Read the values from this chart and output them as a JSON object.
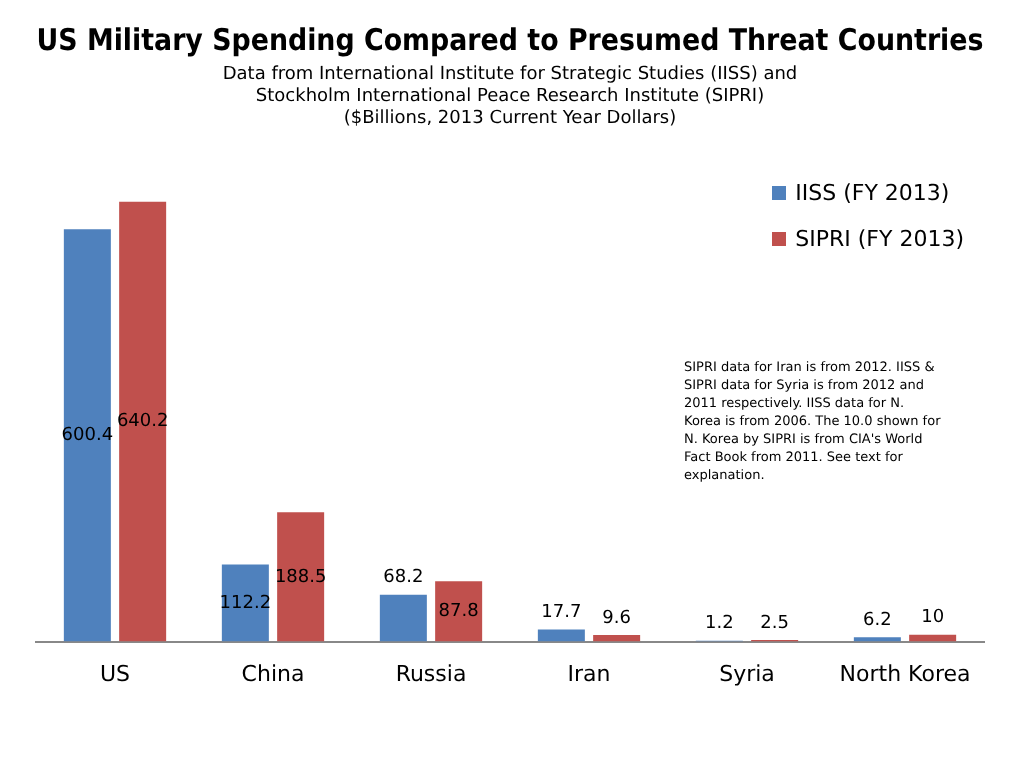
{
  "chart_data": {
    "type": "bar",
    "title": "US Military Spending Compared to Presumed Threat Countries",
    "subtitle": "Data from International Institute for Strategic Studies (IISS) and\nStockholm International Peace Research Institute (SIPRI)\n($Billions, 2013 Current Year Dollars)",
    "categories": [
      "US",
      "China",
      "Russia",
      "Iran",
      "Syria",
      "North Korea"
    ],
    "series": [
      {
        "name": "IISS (FY 2013)",
        "color": "#4f81bd",
        "values": [
          600.4,
          112.2,
          68.2,
          17.7,
          1.2,
          6.2
        ]
      },
      {
        "name": "SIPRI (FY 2013)",
        "color": "#c0504d",
        "values": [
          640.2,
          188.5,
          87.8,
          9.6,
          2.5,
          10
        ]
      }
    ],
    "data_labels": true,
    "grid": false,
    "legend": "top right",
    "annotations": [
      "SIPRI data for Iran is from 2012. IISS & SIPRI data for Syria is from 2012 and 2011 respectively. IISS data for N. Korea is from 2006. The 10.0 shown for N. Korea by SIPRI is from CIA's World Fact Book from 2011. See text for explanation."
    ]
  }
}
